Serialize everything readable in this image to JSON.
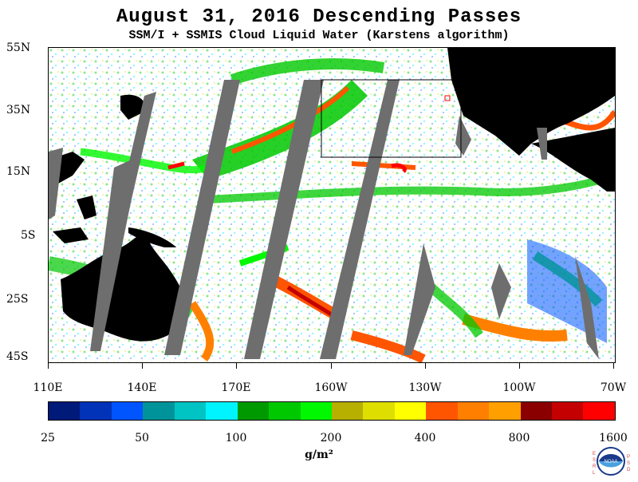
{
  "header": {
    "title": "August 31, 2016  Descending Passes",
    "subtitle": "SSM/I + SSMIS Cloud Liquid Water (Karstens algorithm)"
  },
  "map": {
    "lat_labels": [
      "55N",
      "35N",
      "15N",
      "5S",
      "25S",
      "45S"
    ],
    "lon_labels": [
      "110E",
      "140E",
      "170E",
      "160W",
      "130W",
      "100W",
      "70W"
    ],
    "colors": {
      "land": "#000000",
      "no_data_swath_gap": "#6e6e6e",
      "clear_background": "#ffffff"
    }
  },
  "colorbar": {
    "colors": [
      "#001a7a",
      "#0033b8",
      "#0055ff",
      "#00949a",
      "#00c4c4",
      "#00f4ff",
      "#009900",
      "#00c800",
      "#00f800",
      "#b8b000",
      "#dede00",
      "#ffff00",
      "#ff5500",
      "#ff8000",
      "#ffa000",
      "#8a0000",
      "#c40000",
      "#ff0000"
    ],
    "tick_labels": [
      "25",
      "50",
      "100",
      "200",
      "400",
      "800",
      "1600"
    ],
    "units_label": "g/m²"
  },
  "logo": {
    "name": "NOAA",
    "left_letters": "ESRL",
    "right_letters": "PSD"
  }
}
